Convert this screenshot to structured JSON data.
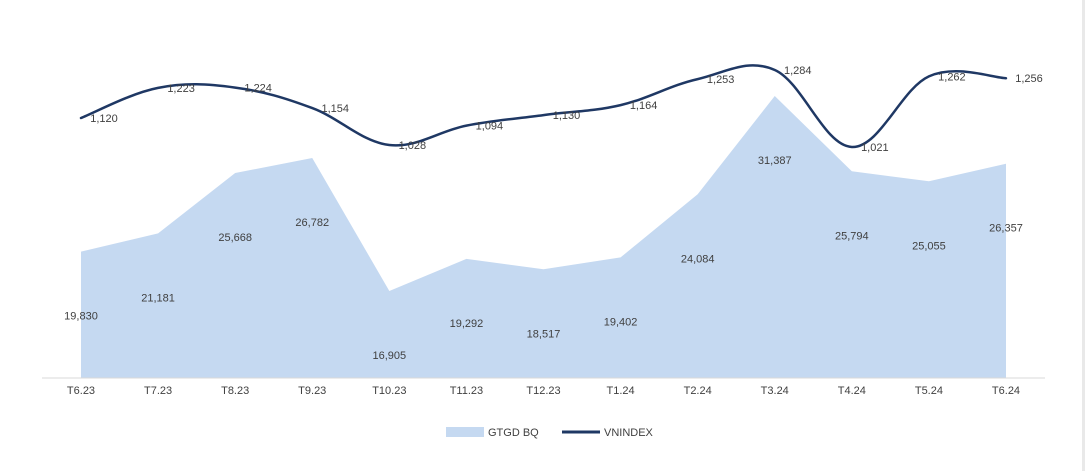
{
  "chart_data": {
    "type": "area",
    "categories": [
      "T6.23",
      "T7.23",
      "T8.23",
      "T9.23",
      "T10.23",
      "T11.23",
      "T12.23",
      "T1.24",
      "T2.24",
      "T3.24",
      "T4.24",
      "T5.24",
      "T6.24"
    ],
    "series": [
      {
        "name": "GTGD BQ",
        "type": "area",
        "values": [
          19830,
          21181,
          25668,
          26782,
          16905,
          19292,
          18517,
          19402,
          24084,
          31387,
          25794,
          25055,
          26357
        ],
        "labels": [
          "19,830",
          "21,181",
          "25,668",
          "26,782",
          "16,905",
          "19,292",
          "18,517",
          "19,402",
          "24,084",
          "31,387",
          "25,794",
          "25,055",
          "26,357"
        ],
        "color": "#c5d9f1"
      },
      {
        "name": "VNINDEX",
        "type": "line",
        "values": [
          1120,
          1223,
          1224,
          1154,
          1028,
          1094,
          1130,
          1164,
          1253,
          1284,
          1021,
          1262,
          1256
        ],
        "labels": [
          "1,120",
          "1,223",
          "1,224",
          "1,154",
          "1,028",
          "1,094",
          "1,130",
          "1,164",
          "1,253",
          "1,284",
          "1,021",
          "1,262",
          "1,256"
        ],
        "color": "#1f3864"
      }
    ],
    "title": "",
    "xlabel": "",
    "ylabel": "",
    "grid": false,
    "legend_position": "bottom-center",
    "legend": [
      {
        "name": "GTGD BQ",
        "marker": "area"
      },
      {
        "name": "VNINDEX",
        "marker": "line"
      }
    ]
  }
}
